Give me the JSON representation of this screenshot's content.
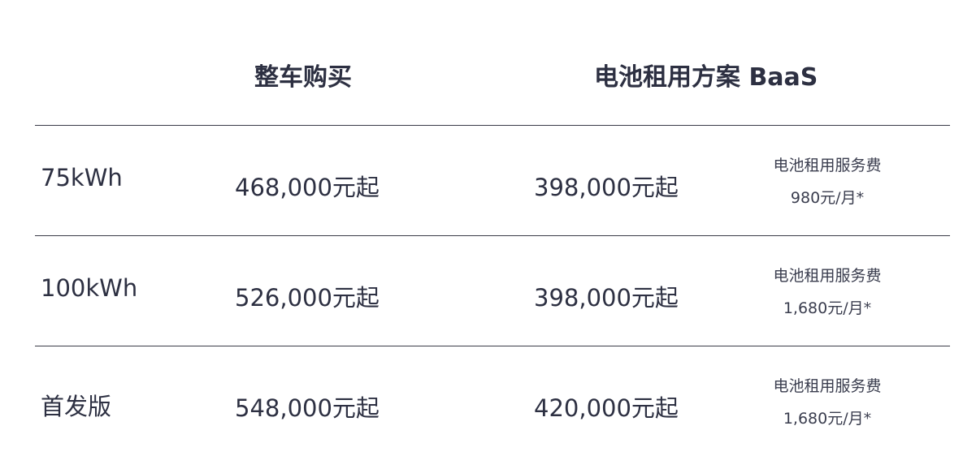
{
  "header": {
    "purchase": "整车购买",
    "baas": "电池租用方案 BaaS"
  },
  "rows": [
    {
      "label": "75kWh",
      "purchase_price": "468,000元起",
      "baas_price": "398,000元起",
      "fee_label": "电池租用服务费",
      "fee_value": "980元/月*"
    },
    {
      "label": "100kWh",
      "purchase_price": "526,000元起",
      "baas_price": "398,000元起",
      "fee_label": "电池租用服务费",
      "fee_value": "1,680元/月*"
    },
    {
      "label": "首发版",
      "purchase_price": "548,000元起",
      "baas_price": "420,000元起",
      "fee_label": "电池租用服务费",
      "fee_value": "1,680元/月*"
    }
  ]
}
